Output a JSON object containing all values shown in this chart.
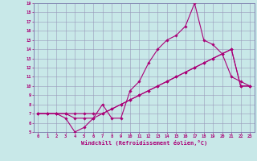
{
  "xlabel": "Windchill (Refroidissement éolien,°C)",
  "bg_color": "#c8e8e8",
  "grid_color": "#9999bb",
  "line_color": "#aa0077",
  "spine_color": "#7777aa",
  "xlim": [
    -0.5,
    23.5
  ],
  "ylim": [
    5,
    19
  ],
  "xticks": [
    0,
    1,
    2,
    3,
    4,
    5,
    6,
    7,
    8,
    9,
    10,
    11,
    12,
    13,
    14,
    15,
    16,
    17,
    18,
    19,
    20,
    21,
    22,
    23
  ],
  "yticks": [
    5,
    6,
    7,
    8,
    9,
    10,
    11,
    12,
    13,
    14,
    15,
    16,
    17,
    18,
    19
  ],
  "line1_x": [
    0,
    1,
    2,
    3,
    4,
    5,
    6,
    7,
    8,
    9,
    10,
    11,
    12,
    13,
    14,
    15,
    16,
    17,
    18,
    19,
    20,
    21,
    22,
    23
  ],
  "line1_y": [
    7,
    7,
    7,
    6.5,
    5,
    5.5,
    6.5,
    8,
    6.5,
    6.5,
    9.5,
    10.5,
    12.5,
    14,
    15,
    15.5,
    16.5,
    19,
    15,
    14.5,
    13.5,
    11,
    10.5,
    10
  ],
  "line2_x": [
    0,
    1,
    2,
    3,
    4,
    5,
    6,
    7,
    8,
    9,
    10,
    11,
    12,
    13,
    14,
    15,
    16,
    17,
    18,
    19,
    20,
    21,
    22,
    23
  ],
  "line2_y": [
    7,
    7,
    7,
    7,
    6.5,
    6.5,
    6.5,
    7,
    7.5,
    8,
    8.5,
    9,
    9.5,
    10,
    10.5,
    11,
    11.5,
    12,
    12.5,
    13,
    13.5,
    14,
    10,
    10
  ],
  "line3_x": [
    0,
    1,
    2,
    3,
    4,
    5,
    6,
    7,
    8,
    9,
    10,
    11,
    12,
    13,
    14,
    15,
    16,
    17,
    18,
    19,
    20,
    21,
    22,
    23
  ],
  "line3_y": [
    7,
    7,
    7,
    7,
    7,
    7,
    7,
    7,
    7.5,
    8,
    8.5,
    9,
    9.5,
    10,
    10.5,
    11,
    11.5,
    12,
    12.5,
    13,
    13.5,
    14,
    10,
    10
  ],
  "marker": "D",
  "markersize": 1.8,
  "linewidth": 0.8,
  "tick_labelsize": 4.0,
  "xlabel_fontsize": 5.0
}
